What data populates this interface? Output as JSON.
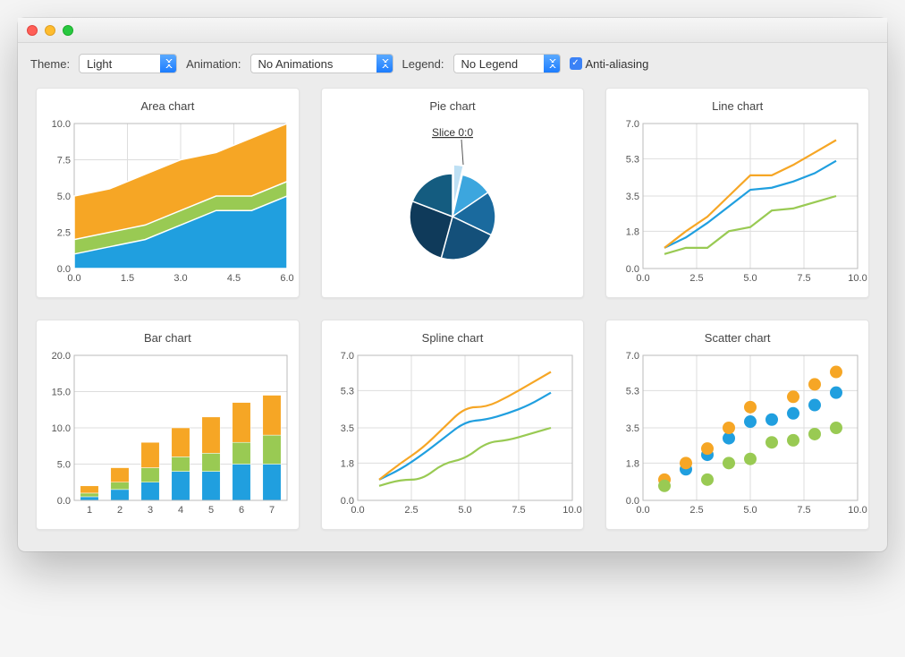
{
  "window": {
    "theme_bg": "#ececec"
  },
  "toolbar": {
    "theme_label": "Theme:",
    "theme_value": "Light",
    "animation_label": "Animation:",
    "animation_value": "No Animations",
    "legend_label": "Legend:",
    "legend_value": "No Legend",
    "antialias_label": "Anti-aliasing",
    "antialias_checked": true
  },
  "palette": {
    "blue": "#209fdf",
    "green": "#99ca53",
    "orange": "#f6a625",
    "grid": "#dddddd",
    "axis": "#888888",
    "pie_shades": [
      "#0f3a5a",
      "#14507a",
      "#1a6a9e",
      "#2086c4",
      "#3ca6de",
      "#99ca53"
    ],
    "pie_highlight": "#bee0f4",
    "tick_font": 11,
    "title_font": 13
  },
  "charts": {
    "area": {
      "title": "Area chart",
      "type": "area",
      "xlim": [
        0,
        6
      ],
      "ylim": [
        0,
        10
      ],
      "xticks": [
        0.0,
        1.5,
        3.0,
        4.5,
        6.0
      ],
      "yticks": [
        0.0,
        2.5,
        5.0,
        7.5,
        10.0
      ],
      "x": [
        0,
        1,
        2,
        3,
        4,
        5,
        6
      ],
      "series": [
        {
          "name": "blue",
          "color": "#209fdf",
          "y": [
            1.0,
            1.5,
            2.0,
            3.0,
            4.0,
            4.0,
            5.0
          ]
        },
        {
          "name": "green",
          "color": "#99ca53",
          "y": [
            2.0,
            2.5,
            3.0,
            4.0,
            5.0,
            5.0,
            6.0
          ]
        },
        {
          "name": "orange",
          "color": "#f6a625",
          "y": [
            5.0,
            5.5,
            6.5,
            7.5,
            8.0,
            9.0,
            10.0
          ]
        }
      ]
    },
    "pie": {
      "title": "Pie chart",
      "type": "pie",
      "callout_label": "Slice 0:0",
      "exploded_index": 0,
      "slices": [
        {
          "value": 10,
          "color": "#bee0f4"
        },
        {
          "value": 32,
          "color": "#3ca6de"
        },
        {
          "value": 45,
          "color": "#1a6a9e"
        },
        {
          "value": 60,
          "color": "#14507a"
        },
        {
          "value": 72,
          "color": "#0f3a5a"
        },
        {
          "value": 52,
          "color": "#145c80"
        }
      ]
    },
    "line": {
      "title": "Line chart",
      "type": "line",
      "xlim": [
        0,
        10
      ],
      "ylim": [
        0,
        7
      ],
      "xticks": [
        0.0,
        2.5,
        5.0,
        7.5,
        10.0
      ],
      "yticks": [
        0.0,
        1.8,
        3.5,
        5.3,
        7.0
      ],
      "x": [
        1,
        2,
        3,
        4,
        5,
        6,
        7,
        8,
        9
      ],
      "series": [
        {
          "name": "blue",
          "color": "#209fdf",
          "y": [
            1.0,
            1.5,
            2.2,
            3.0,
            3.8,
            3.9,
            4.2,
            4.6,
            5.2
          ]
        },
        {
          "name": "orange",
          "color": "#f6a625",
          "y": [
            1.0,
            1.8,
            2.5,
            3.5,
            4.5,
            4.5,
            5.0,
            5.6,
            6.2
          ]
        },
        {
          "name": "green",
          "color": "#99ca53",
          "y": [
            0.7,
            1.0,
            1.0,
            1.8,
            2.0,
            2.8,
            2.9,
            3.2,
            3.5
          ]
        }
      ]
    },
    "bar": {
      "title": "Bar chart",
      "type": "bar-stacked",
      "xlim": [
        1,
        7
      ],
      "ylim": [
        0,
        20
      ],
      "xticks": [
        1,
        2,
        3,
        4,
        5,
        6,
        7
      ],
      "yticks": [
        0.0,
        5.0,
        10.0,
        15.0,
        20.0
      ],
      "categories": [
        1,
        2,
        3,
        4,
        5,
        6,
        7
      ],
      "bar_width": 0.6,
      "series": [
        {
          "name": "blue",
          "color": "#209fdf",
          "y": [
            0.5,
            1.5,
            2.5,
            4.0,
            4.0,
            5.0,
            5.0
          ]
        },
        {
          "name": "green",
          "color": "#99ca53",
          "y": [
            0.5,
            1.0,
            2.0,
            2.0,
            2.5,
            3.0,
            4.0
          ]
        },
        {
          "name": "orange",
          "color": "#f6a625",
          "y": [
            1.0,
            2.0,
            3.5,
            4.0,
            5.0,
            5.5,
            5.5
          ]
        }
      ]
    },
    "spline": {
      "title": "Spline chart",
      "type": "spline",
      "xlim": [
        0,
        10
      ],
      "ylim": [
        0,
        7
      ],
      "xticks": [
        0.0,
        2.5,
        5.0,
        7.5,
        10.0
      ],
      "yticks": [
        0.0,
        1.8,
        3.5,
        5.3,
        7.0
      ],
      "x": [
        1,
        2,
        3,
        4,
        5,
        6,
        7,
        8,
        9
      ],
      "series": [
        {
          "name": "blue",
          "color": "#209fdf",
          "y": [
            1.0,
            1.5,
            2.2,
            3.0,
            3.8,
            3.9,
            4.2,
            4.6,
            5.2
          ]
        },
        {
          "name": "orange",
          "color": "#f6a625",
          "y": [
            1.0,
            1.8,
            2.5,
            3.5,
            4.5,
            4.5,
            5.0,
            5.6,
            6.2
          ]
        },
        {
          "name": "green",
          "color": "#99ca53",
          "y": [
            0.7,
            1.0,
            1.0,
            1.8,
            2.0,
            2.8,
            2.9,
            3.2,
            3.5
          ]
        }
      ]
    },
    "scatter": {
      "title": "Scatter chart",
      "type": "scatter",
      "xlim": [
        0,
        10
      ],
      "ylim": [
        0,
        7
      ],
      "xticks": [
        0.0,
        2.5,
        5.0,
        7.5,
        10.0
      ],
      "yticks": [
        0.0,
        1.8,
        3.5,
        5.3,
        7.0
      ],
      "marker_radius": 7,
      "series": [
        {
          "name": "blue",
          "color": "#209fdf",
          "pts": [
            [
              2,
              1.5
            ],
            [
              3,
              2.2
            ],
            [
              4,
              3.0
            ],
            [
              5,
              3.8
            ],
            [
              6,
              3.9
            ],
            [
              7,
              4.2
            ],
            [
              8,
              4.6
            ],
            [
              9,
              5.2
            ]
          ]
        },
        {
          "name": "orange",
          "color": "#f6a625",
          "pts": [
            [
              1,
              1.0
            ],
            [
              2,
              1.8
            ],
            [
              3,
              2.5
            ],
            [
              4,
              3.5
            ],
            [
              5,
              4.5
            ],
            [
              7,
              5.0
            ],
            [
              8,
              5.6
            ],
            [
              9,
              6.2
            ]
          ]
        },
        {
          "name": "green",
          "color": "#99ca53",
          "pts": [
            [
              1,
              0.7
            ],
            [
              3,
              1.0
            ],
            [
              4,
              1.8
            ],
            [
              5,
              2.0
            ],
            [
              6,
              2.8
            ],
            [
              7,
              2.9
            ],
            [
              8,
              3.2
            ],
            [
              9,
              3.5
            ]
          ]
        }
      ]
    }
  }
}
